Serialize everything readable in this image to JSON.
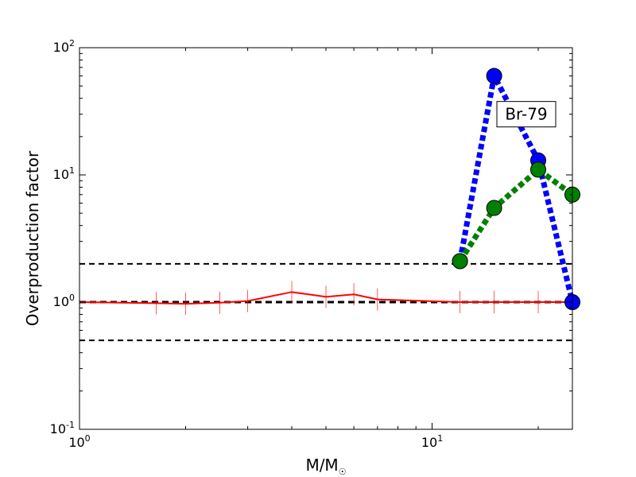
{
  "chart_data": {
    "type": "line",
    "xscale": "log",
    "yscale": "log",
    "xlim": [
      1,
      25
    ],
    "ylim": [
      0.1,
      100
    ],
    "xlabel_main": "M/M",
    "xlabel_sub": "☉",
    "ylabel": "Overproduction factor",
    "x_ticks": [
      {
        "value": 1,
        "base": "10",
        "exp": "0"
      },
      {
        "value": 10,
        "base": "10",
        "exp": "1"
      }
    ],
    "y_ticks": [
      {
        "value": 0.1,
        "base": "10",
        "exp": "-1"
      },
      {
        "value": 1,
        "base": "10",
        "exp": "0"
      },
      {
        "value": 10,
        "base": "10",
        "exp": "1"
      },
      {
        "value": 100,
        "base": "10",
        "exp": "2"
      }
    ],
    "reference_lines": [
      0.5,
      1,
      2
    ],
    "series": [
      {
        "color": "#ff0000",
        "style": "solid",
        "x": [
          1,
          1.65,
          2,
          2.5,
          3,
          4,
          5,
          6,
          7,
          12,
          15,
          20,
          25
        ],
        "y": [
          1.0,
          0.98,
          0.97,
          0.99,
          1.02,
          1.2,
          1.1,
          1.15,
          1.05,
          1.0,
          1.0,
          1.0,
          1.0
        ]
      },
      {
        "color": "#0000ff",
        "style": "dotted",
        "x": [
          12,
          15,
          20,
          25
        ],
        "y": [
          2.1,
          60,
          13,
          1.0
        ]
      },
      {
        "color": "#008000",
        "style": "dotted",
        "x": [
          12,
          15,
          20,
          25
        ],
        "y": [
          2.1,
          5.5,
          11,
          7
        ]
      }
    ],
    "annotations": [
      {
        "text": "Br-79",
        "x": 18.5,
        "y": 30
      }
    ]
  }
}
